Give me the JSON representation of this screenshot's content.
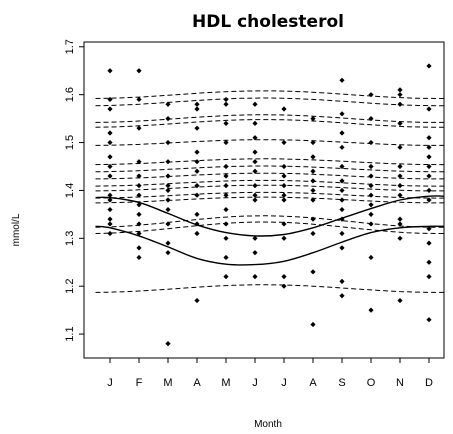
{
  "chart_data": {
    "type": "scatter",
    "title": "HDL cholesterol",
    "xlabel": "Month",
    "ylabel": "mmol/L",
    "categories": [
      "J",
      "F",
      "M",
      "A",
      "M",
      "J",
      "J",
      "A",
      "S",
      "O",
      "N",
      "D"
    ],
    "yticks": [
      "1.1",
      "1.2",
      "1.3",
      "1.4",
      "1.5",
      "1.6",
      "1.7"
    ],
    "ylim": [
      1.05,
      1.71
    ],
    "grid": false,
    "legend": "none",
    "series": [
      {
        "style": "points",
        "points": [
          [
            1,
            1.65
          ],
          [
            1,
            1.59
          ],
          [
            1,
            1.57
          ],
          [
            1,
            1.52
          ],
          [
            1,
            1.5
          ],
          [
            1,
            1.47
          ],
          [
            1,
            1.45
          ],
          [
            1,
            1.43
          ],
          [
            1,
            1.39
          ],
          [
            1,
            1.38
          ],
          [
            1,
            1.36
          ],
          [
            1,
            1.34
          ],
          [
            1,
            1.33
          ],
          [
            1,
            1.31
          ],
          [
            2,
            1.65
          ],
          [
            2,
            1.59
          ],
          [
            2,
            1.53
          ],
          [
            2,
            1.46
          ],
          [
            2,
            1.43
          ],
          [
            2,
            1.41
          ],
          [
            2,
            1.39
          ],
          [
            2,
            1.37
          ],
          [
            2,
            1.35
          ],
          [
            2,
            1.33
          ],
          [
            2,
            1.31
          ],
          [
            2,
            1.28
          ],
          [
            2,
            1.26
          ],
          [
            3,
            1.58
          ],
          [
            3,
            1.55
          ],
          [
            3,
            1.5
          ],
          [
            3,
            1.46
          ],
          [
            3,
            1.43
          ],
          [
            3,
            1.41
          ],
          [
            3,
            1.4
          ],
          [
            3,
            1.38
          ],
          [
            3,
            1.36
          ],
          [
            3,
            1.33
          ],
          [
            3,
            1.29
          ],
          [
            3,
            1.27
          ],
          [
            3,
            1.08
          ],
          [
            4,
            1.58
          ],
          [
            4,
            1.57
          ],
          [
            4,
            1.53
          ],
          [
            4,
            1.48
          ],
          [
            4,
            1.46
          ],
          [
            4,
            1.44
          ],
          [
            4,
            1.41
          ],
          [
            4,
            1.39
          ],
          [
            4,
            1.35
          ],
          [
            4,
            1.33
          ],
          [
            4,
            1.31
          ],
          [
            4,
            1.17
          ],
          [
            5,
            1.59
          ],
          [
            5,
            1.58
          ],
          [
            5,
            1.54
          ],
          [
            5,
            1.5
          ],
          [
            5,
            1.45
          ],
          [
            5,
            1.43
          ],
          [
            5,
            1.41
          ],
          [
            5,
            1.39
          ],
          [
            5,
            1.36
          ],
          [
            5,
            1.33
          ],
          [
            5,
            1.3
          ],
          [
            5,
            1.26
          ],
          [
            5,
            1.22
          ],
          [
            6,
            1.58
          ],
          [
            6,
            1.54
          ],
          [
            6,
            1.51
          ],
          [
            6,
            1.48
          ],
          [
            6,
            1.46
          ],
          [
            6,
            1.44
          ],
          [
            6,
            1.41
          ],
          [
            6,
            1.39
          ],
          [
            6,
            1.38
          ],
          [
            6,
            1.3
          ],
          [
            6,
            1.27
          ],
          [
            6,
            1.22
          ],
          [
            7,
            1.57
          ],
          [
            7,
            1.5
          ],
          [
            7,
            1.45
          ],
          [
            7,
            1.43
          ],
          [
            7,
            1.41
          ],
          [
            7,
            1.39
          ],
          [
            7,
            1.38
          ],
          [
            7,
            1.33
          ],
          [
            7,
            1.3
          ],
          [
            7,
            1.22
          ],
          [
            7,
            1.2
          ],
          [
            8,
            1.55
          ],
          [
            8,
            1.5
          ],
          [
            8,
            1.47
          ],
          [
            8,
            1.44
          ],
          [
            8,
            1.42
          ],
          [
            8,
            1.4
          ],
          [
            8,
            1.38
          ],
          [
            8,
            1.34
          ],
          [
            8,
            1.31
          ],
          [
            8,
            1.23
          ],
          [
            8,
            1.12
          ],
          [
            9,
            1.63
          ],
          [
            9,
            1.56
          ],
          [
            9,
            1.52
          ],
          [
            9,
            1.49
          ],
          [
            9,
            1.45
          ],
          [
            9,
            1.42
          ],
          [
            9,
            1.4
          ],
          [
            9,
            1.38
          ],
          [
            9,
            1.36
          ],
          [
            9,
            1.34
          ],
          [
            9,
            1.31
          ],
          [
            9,
            1.28
          ],
          [
            9,
            1.21
          ],
          [
            9,
            1.18
          ],
          [
            10,
            1.6
          ],
          [
            10,
            1.55
          ],
          [
            10,
            1.5
          ],
          [
            10,
            1.45
          ],
          [
            10,
            1.43
          ],
          [
            10,
            1.41
          ],
          [
            10,
            1.39
          ],
          [
            10,
            1.37
          ],
          [
            10,
            1.35
          ],
          [
            10,
            1.33
          ],
          [
            10,
            1.26
          ],
          [
            10,
            1.15
          ],
          [
            11,
            1.61
          ],
          [
            11,
            1.6
          ],
          [
            11,
            1.58
          ],
          [
            11,
            1.54
          ],
          [
            11,
            1.49
          ],
          [
            11,
            1.45
          ],
          [
            11,
            1.43
          ],
          [
            11,
            1.41
          ],
          [
            11,
            1.39
          ],
          [
            11,
            1.34
          ],
          [
            11,
            1.33
          ],
          [
            11,
            1.3
          ],
          [
            11,
            1.17
          ],
          [
            12,
            1.66
          ],
          [
            12,
            1.57
          ],
          [
            12,
            1.51
          ],
          [
            12,
            1.49
          ],
          [
            12,
            1.47
          ],
          [
            12,
            1.45
          ],
          [
            12,
            1.43
          ],
          [
            12,
            1.4
          ],
          [
            12,
            1.38
          ],
          [
            12,
            1.32
          ],
          [
            12,
            1.29
          ],
          [
            12,
            1.25
          ],
          [
            12,
            1.22
          ],
          [
            12,
            1.13
          ]
        ]
      },
      {
        "style": "solid",
        "x": [
          0.5,
          1,
          2,
          3,
          4,
          5,
          6,
          7,
          8,
          9,
          10,
          11,
          12,
          12.5
        ],
        "y": [
          1.385,
          1.385,
          1.375,
          1.352,
          1.328,
          1.312,
          1.305,
          1.308,
          1.322,
          1.342,
          1.362,
          1.38,
          1.388,
          1.388
        ]
      },
      {
        "style": "solid",
        "x": [
          0.5,
          1,
          2,
          3,
          4,
          5,
          6,
          7,
          8,
          9,
          10,
          11,
          12,
          12.5
        ],
        "y": [
          1.325,
          1.322,
          1.305,
          1.282,
          1.258,
          1.246,
          1.245,
          1.252,
          1.27,
          1.292,
          1.312,
          1.322,
          1.325,
          1.325
        ]
      },
      {
        "style": "dashed",
        "y0": 1.6,
        "amp": 0.008
      },
      {
        "style": "dashed",
        "y0": 1.585,
        "amp": 0.008
      },
      {
        "style": "dashed",
        "y0": 1.55,
        "amp": 0.008
      },
      {
        "style": "dashed",
        "y0": 1.54,
        "amp": 0.008
      },
      {
        "style": "dashed",
        "y0": 1.5,
        "amp": 0.006
      },
      {
        "style": "dashed",
        "y0": 1.46,
        "amp": 0.006
      },
      {
        "style": "dashed",
        "y0": 1.445,
        "amp": 0.006
      },
      {
        "style": "dashed",
        "y0": 1.43,
        "amp": 0.006
      },
      {
        "style": "dashed",
        "y0": 1.415,
        "amp": 0.006
      },
      {
        "style": "dashed",
        "y0": 1.405,
        "amp": 0.006
      },
      {
        "style": "dashed",
        "y0": 1.39,
        "amp": 0.006
      },
      {
        "style": "dashed",
        "y0": 1.38,
        "amp": 0.006
      },
      {
        "style": "dashed",
        "y0": 1.335,
        "amp": 0.012
      },
      {
        "style": "dashed",
        "y0": 1.322,
        "amp": 0.012
      },
      {
        "style": "dashed",
        "y0": 1.195,
        "amp": 0.008
      }
    ]
  }
}
